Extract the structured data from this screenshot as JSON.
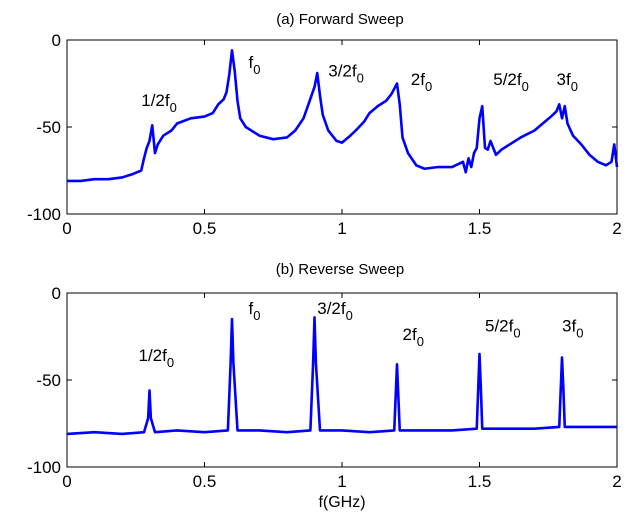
{
  "chart_data": [
    {
      "type": "line",
      "title": "(a) Forward Sweep",
      "xlabel": "",
      "ylabel": "",
      "xlim": [
        0,
        2
      ],
      "ylim": [
        -100,
        0
      ],
      "xticks": [
        "0",
        "0.5",
        "1",
        "1.5",
        "2"
      ],
      "yticks": [
        "0",
        "-50",
        "-100"
      ],
      "grid": false,
      "line_color": "#0000ff",
      "series": [
        {
          "x": [
            0,
            0.05,
            0.1,
            0.15,
            0.2,
            0.24,
            0.27,
            0.28,
            0.29,
            0.3,
            0.31,
            0.32,
            0.33,
            0.35,
            0.38,
            0.4,
            0.45,
            0.5,
            0.53,
            0.55,
            0.57,
            0.58,
            0.59,
            0.6,
            0.61,
            0.62,
            0.63,
            0.65,
            0.7,
            0.75,
            0.8,
            0.83,
            0.86,
            0.88,
            0.9,
            0.91,
            0.92,
            0.93,
            0.95,
            0.98,
            1.0,
            1.03,
            1.05,
            1.08,
            1.1,
            1.13,
            1.16,
            1.18,
            1.2,
            1.21,
            1.22,
            1.24,
            1.27,
            1.3,
            1.35,
            1.4,
            1.44,
            1.45,
            1.46,
            1.47,
            1.48,
            1.49,
            1.5,
            1.51,
            1.52,
            1.53,
            1.54,
            1.56,
            1.58,
            1.6,
            1.65,
            1.7,
            1.73,
            1.76,
            1.78,
            1.79,
            1.8,
            1.81,
            1.82,
            1.84,
            1.87,
            1.9,
            1.93,
            1.96,
            1.98,
            1.99,
            2.0
          ],
          "y": [
            -81,
            -81,
            -80,
            -80,
            -79,
            -77,
            -75,
            -68,
            -62,
            -58,
            -49,
            -65,
            -60,
            -55,
            -52,
            -48,
            -45,
            -44,
            -42,
            -37,
            -34,
            -30,
            -20,
            -6,
            -18,
            -35,
            -45,
            -50,
            -55,
            -57,
            -56,
            -52,
            -45,
            -36,
            -27,
            -19,
            -32,
            -43,
            -52,
            -58,
            -59,
            -55,
            -52,
            -47,
            -42,
            -38,
            -35,
            -31,
            -25,
            -37,
            -56,
            -65,
            -72,
            -74,
            -73,
            -73,
            -70,
            -76,
            -68,
            -73,
            -65,
            -62,
            -45,
            -38,
            -62,
            -63,
            -58,
            -66,
            -63,
            -61,
            -56,
            -52,
            -48,
            -44,
            -41,
            -37,
            -45,
            -38,
            -48,
            -55,
            -60,
            -66,
            -70,
            -72,
            -70,
            -60,
            -73
          ]
        }
      ]
    },
    {
      "type": "line",
      "title": "(b) Reverse Sweep",
      "xlabel": "f(GHz)",
      "ylabel": "",
      "xlim": [
        0,
        2
      ],
      "ylim": [
        -100,
        0
      ],
      "xticks": [
        "0",
        "0.5",
        "1",
        "1.5",
        "2"
      ],
      "yticks": [
        "0",
        "-50",
        "-100"
      ],
      "grid": false,
      "line_color": "#0000ff",
      "series": [
        {
          "x": [
            0,
            0.1,
            0.2,
            0.28,
            0.295,
            0.3,
            0.305,
            0.32,
            0.4,
            0.5,
            0.585,
            0.595,
            0.6,
            0.605,
            0.62,
            0.7,
            0.8,
            0.885,
            0.895,
            0.9,
            0.905,
            0.92,
            1.0,
            1.1,
            1.19,
            1.2,
            1.205,
            1.21,
            1.23,
            1.3,
            1.4,
            1.49,
            1.5,
            1.505,
            1.51,
            1.53,
            1.6,
            1.7,
            1.79,
            1.8,
            1.805,
            1.81,
            1.83,
            1.9,
            2.0
          ],
          "y": [
            -81,
            -80,
            -81,
            -80,
            -72,
            -56,
            -72,
            -80,
            -79,
            -80,
            -79,
            -40,
            -15,
            -40,
            -79,
            -79,
            -80,
            -79,
            -40,
            -14,
            -40,
            -79,
            -79,
            -80,
            -79,
            -41,
            -60,
            -79,
            -79,
            -79,
            -79,
            -78,
            -35,
            -55,
            -78,
            -78,
            -78,
            -78,
            -77,
            -37,
            -55,
            -77,
            -77,
            -77,
            -77
          ]
        }
      ]
    }
  ],
  "annotations_a": [
    {
      "main": "1/2f",
      "sub": "0",
      "x": 0.27,
      "y": -38
    },
    {
      "main": "f",
      "sub": "0",
      "x": 0.66,
      "y": -16
    },
    {
      "main": "3/2f",
      "sub": "0",
      "x": 0.95,
      "y": -21
    },
    {
      "main": "2f",
      "sub": "0",
      "x": 1.25,
      "y": -26
    },
    {
      "main": "5/2f",
      "sub": "0",
      "x": 1.55,
      "y": -26
    },
    {
      "main": "3f",
      "sub": "0",
      "x": 1.78,
      "y": -26
    }
  ],
  "annotations_b": [
    {
      "main": "1/2f",
      "sub": "0",
      "x": 0.26,
      "y": -39
    },
    {
      "main": "f",
      "sub": "0",
      "x": 0.66,
      "y": -12
    },
    {
      "main": "3/2f",
      "sub": "0",
      "x": 0.91,
      "y": -12
    },
    {
      "main": "2f",
      "sub": "0",
      "x": 1.22,
      "y": -27
    },
    {
      "main": "5/2f",
      "sub": "0",
      "x": 1.52,
      "y": -22
    },
    {
      "main": "3f",
      "sub": "0",
      "x": 1.8,
      "y": -22
    }
  ]
}
